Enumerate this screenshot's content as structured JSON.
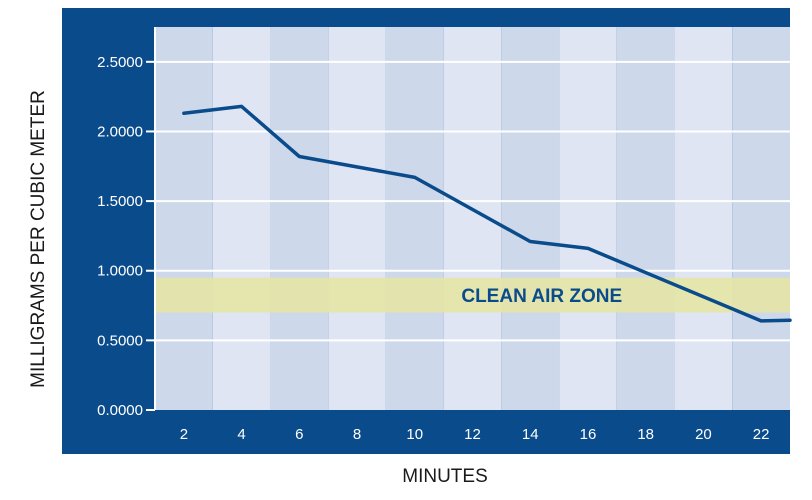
{
  "chart_data": {
    "type": "line",
    "xlabel": "MINUTES",
    "ylabel": "MILLIGRAMS PER CUBIC METER",
    "x_ticks": [
      "2",
      "4",
      "6",
      "8",
      "10",
      "12",
      "14",
      "16",
      "18",
      "20",
      "22"
    ],
    "y_ticks": [
      "0.0000",
      "0.5000",
      "1.0000",
      "1.5000",
      "2.0000",
      "2.5000"
    ],
    "xlim": [
      1,
      23
    ],
    "ylim": [
      0,
      2.75
    ],
    "series": [
      {
        "x": [
          2,
          4,
          6,
          10,
          14,
          16,
          22,
          23
        ],
        "y": [
          2.13,
          2.18,
          1.82,
          1.67,
          1.21,
          1.16,
          0.64,
          0.645
        ]
      }
    ],
    "band": {
      "label": "CLEAN AIR ZONE",
      "from": 0.7,
      "to": 0.95
    },
    "colors": {
      "frame": "#0a4b8c",
      "stripe_dark": "#cdd8ea",
      "stripe_light": "#dfe5f3",
      "band": "#e6e5a6",
      "line": "#0a4b8c",
      "grid": "#ffffff",
      "band_label": "#0a4b8c"
    }
  }
}
